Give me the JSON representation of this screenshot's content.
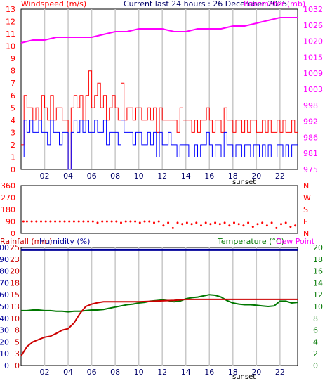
{
  "header": {
    "windspeed_label": "Windspeed (m/s)",
    "title": "Current last 24 hours : 26 December 2025",
    "barometer_label": "Barometer (mb)"
  },
  "colors": {
    "wind_gust": "#ff0000",
    "wind_avg": "#0000ff",
    "barometer": "#ff00ff",
    "rainfall": "#cc0000",
    "humidity": "#000099",
    "temperature": "#007700",
    "dewpoint": "#ff00ff",
    "direction": "#ff0000",
    "grid": "#c8c8c8"
  },
  "footer": {
    "sunset_label": "sunset"
  },
  "chart_data": [
    {
      "type": "line",
      "name": "wind-barometer",
      "title": "Current last 24 hours : 26 December 2025",
      "xlabel": "",
      "xlim": [
        0,
        23.5
      ],
      "x_ticks": [
        "02",
        "04",
        "06",
        "08",
        "10",
        "12",
        "14",
        "16",
        "18",
        "20",
        "22"
      ],
      "x_tick_values": [
        2,
        4,
        6,
        8,
        10,
        12,
        14,
        16,
        18,
        20,
        22
      ],
      "left_axis": {
        "label": "Windspeed (m/s)",
        "range": [
          0,
          13
        ],
        "ticks": [
          0,
          1,
          2,
          3,
          4,
          5,
          6,
          7,
          8,
          9,
          10,
          11,
          12,
          13
        ]
      },
      "right_axis": {
        "label": "Barometer (mb)",
        "range": [
          975,
          1032
        ],
        "ticks": [
          "975",
          "981",
          "986",
          "992",
          "998",
          "1003",
          "1009",
          "1015",
          "1020",
          "1026",
          "1032"
        ]
      },
      "series": [
        {
          "name": "Gust",
          "axis": "left",
          "x": [
            0,
            0.25,
            0.5,
            0.75,
            1,
            1.25,
            1.5,
            1.75,
            2,
            2.25,
            2.5,
            2.75,
            3,
            3.25,
            3.5,
            3.75,
            4,
            4.25,
            4.5,
            4.75,
            5,
            5.25,
            5.5,
            5.75,
            6,
            6.25,
            6.5,
            6.75,
            7,
            7.25,
            7.5,
            7.75,
            8,
            8.25,
            8.5,
            8.75,
            9,
            9.25,
            9.5,
            9.75,
            10,
            10.25,
            10.5,
            10.75,
            11,
            11.25,
            11.5,
            11.75,
            12,
            12.25,
            12.5,
            12.75,
            13,
            13.25,
            13.5,
            13.75,
            14,
            14.25,
            14.5,
            14.75,
            15,
            15.25,
            15.5,
            15.75,
            16,
            16.25,
            16.5,
            16.75,
            17,
            17.25,
            17.5,
            17.75,
            18,
            18.25,
            18.5,
            18.75,
            19,
            19.25,
            19.5,
            19.75,
            20,
            20.25,
            20.5,
            20.75,
            21,
            21.25,
            21.5,
            21.75,
            22,
            22.25,
            22.5,
            22.75,
            23,
            23.25
          ],
          "values": [
            2,
            6,
            5,
            5,
            4,
            5,
            4,
            6,
            5,
            4,
            6,
            4,
            5,
            5,
            4,
            4,
            0,
            5,
            6,
            5,
            6,
            4,
            6,
            8,
            5,
            6,
            7,
            5,
            6,
            4,
            5,
            6,
            5,
            4,
            7,
            4,
            5,
            5,
            4,
            5,
            5,
            4,
            4,
            5,
            4,
            5,
            3,
            5,
            4,
            4,
            4,
            4,
            4,
            3,
            5,
            4,
            4,
            4,
            3,
            4,
            3,
            4,
            4,
            5,
            4,
            3,
            4,
            4,
            3,
            5,
            4,
            4,
            3,
            4,
            4,
            3,
            4,
            3,
            4,
            4,
            3,
            3,
            4,
            3,
            4,
            3,
            3,
            4,
            3,
            4,
            3,
            3,
            4,
            3
          ]
        },
        {
          "name": "Average",
          "axis": "left",
          "x": [
            0,
            0.25,
            0.5,
            0.75,
            1,
            1.25,
            1.5,
            1.75,
            2,
            2.25,
            2.5,
            2.75,
            3,
            3.25,
            3.5,
            3.75,
            4,
            4.25,
            4.5,
            4.75,
            5,
            5.25,
            5.5,
            5.75,
            6,
            6.25,
            6.5,
            6.75,
            7,
            7.25,
            7.5,
            7.75,
            8,
            8.25,
            8.5,
            8.75,
            9,
            9.25,
            9.5,
            9.75,
            10,
            10.25,
            10.5,
            10.75,
            11,
            11.25,
            11.5,
            11.75,
            12,
            12.25,
            12.5,
            12.75,
            13,
            13.25,
            13.5,
            13.75,
            14,
            14.25,
            14.5,
            14.75,
            15,
            15.25,
            15.5,
            15.75,
            16,
            16.25,
            16.5,
            16.75,
            17,
            17.25,
            17.5,
            17.75,
            18,
            18.25,
            18.5,
            18.75,
            19,
            19.25,
            19.5,
            19.75,
            20,
            20.25,
            20.5,
            20.75,
            21,
            21.25,
            21.5,
            21.75,
            22,
            22.25,
            22.5,
            22.75,
            23,
            23.25
          ],
          "values": [
            1,
            4,
            3,
            4,
            3,
            3,
            4,
            3,
            3,
            2,
            4,
            3,
            3,
            2,
            3,
            3,
            0,
            3,
            4,
            3,
            4,
            3,
            4,
            3,
            3,
            4,
            3,
            3,
            4,
            2,
            3,
            3,
            3,
            2,
            4,
            3,
            3,
            3,
            2,
            3,
            3,
            2,
            2,
            3,
            2,
            3,
            1,
            3,
            2,
            2,
            3,
            2,
            2,
            1,
            2,
            2,
            2,
            1,
            1,
            2,
            1,
            2,
            2,
            3,
            2,
            1,
            2,
            2,
            1,
            3,
            2,
            2,
            1,
            2,
            2,
            1,
            2,
            2,
            1,
            2,
            2,
            1,
            2,
            1,
            2,
            1,
            1,
            2,
            2,
            1,
            2,
            1,
            2,
            2
          ]
        },
        {
          "name": "Barometer",
          "axis": "right",
          "x": [
            0,
            1,
            2,
            3,
            4,
            5,
            6,
            7,
            8,
            9,
            10,
            11,
            12,
            13,
            14,
            15,
            16,
            17,
            18,
            19,
            20,
            21,
            22,
            23,
            23.5
          ],
          "values": [
            1020,
            1021,
            1021,
            1022,
            1022,
            1022,
            1022,
            1023,
            1024,
            1024,
            1025,
            1025,
            1025,
            1024,
            1024,
            1025,
            1025,
            1025,
            1026,
            1026,
            1027,
            1028,
            1029,
            1029,
            1029
          ]
        }
      ]
    },
    {
      "type": "scatter",
      "name": "wind-direction",
      "xlim": [
        0,
        23.5
      ],
      "left_axis": {
        "range": [
          0,
          360
        ],
        "ticks": [
          "0",
          "90",
          "180",
          "270",
          "360"
        ]
      },
      "right_axis": {
        "range": [
          0,
          360
        ],
        "ticks": [
          "N",
          "E",
          "S",
          "W",
          "N"
        ]
      },
      "series": [
        {
          "name": "Direction",
          "x": [
            0.2,
            0.5,
            0.9,
            1.3,
            1.7,
            2.1,
            2.5,
            2.9,
            3.3,
            3.7,
            4.1,
            4.5,
            4.9,
            5.3,
            5.7,
            6.1,
            6.5,
            6.9,
            7.3,
            7.7,
            8.1,
            8.5,
            8.9,
            9.3,
            9.7,
            10.1,
            10.5,
            10.9,
            11.3,
            11.7,
            12.1,
            12.5,
            12.9,
            13.3,
            13.7,
            14.1,
            14.5,
            14.9,
            15.3,
            15.7,
            16.1,
            16.5,
            16.9,
            17.3,
            17.7,
            18.1,
            18.5,
            18.9,
            19.3,
            19.7,
            20.1,
            20.5,
            20.9,
            21.3,
            21.7,
            22.1,
            22.5,
            22.9,
            23.3
          ],
          "values": [
            90,
            90,
            90,
            90,
            90,
            90,
            90,
            90,
            90,
            90,
            90,
            90,
            90,
            90,
            90,
            90,
            80,
            90,
            90,
            90,
            90,
            80,
            90,
            90,
            90,
            80,
            90,
            90,
            80,
            90,
            60,
            80,
            40,
            80,
            70,
            80,
            70,
            80,
            60,
            80,
            70,
            80,
            70,
            80,
            60,
            80,
            70,
            60,
            80,
            50,
            70,
            80,
            60,
            80,
            40,
            70,
            80,
            50,
            60
          ]
        }
      ]
    },
    {
      "type": "line",
      "name": "rain-humidity-temperature",
      "xlabel": "",
      "xlim": [
        0,
        23.5
      ],
      "x_ticks": [
        "02",
        "04",
        "06",
        "08",
        "10",
        "12",
        "14",
        "16",
        "18",
        "20",
        "22"
      ],
      "x_tick_values": [
        2,
        4,
        6,
        8,
        10,
        12,
        14,
        16,
        18,
        20,
        22
      ],
      "axis_rainfall": {
        "label": "Rainfall (mm)",
        "range": [
          0,
          25
        ],
        "ticks": [
          "0",
          "3",
          "5",
          "8",
          "10",
          "13",
          "15",
          "18",
          "20",
          "23",
          "25"
        ]
      },
      "axis_humidity": {
        "label": "Humidity (%)",
        "range": [
          0,
          100
        ],
        "ticks": [
          "0",
          "10",
          "20",
          "30",
          "40",
          "50",
          "60",
          "70",
          "80",
          "90",
          "100"
        ]
      },
      "axis_temperature": {
        "label": "Temperature (°C)",
        "range": [
          0,
          20
        ],
        "ticks": [
          "0",
          "2",
          "4",
          "6",
          "8",
          "10",
          "12",
          "14",
          "16",
          "18",
          "20"
        ]
      },
      "dewpoint_label": "Dew Point",
      "series": [
        {
          "name": "Rainfall",
          "axis": "rainfall",
          "x": [
            0,
            0.5,
            1,
            1.5,
            2,
            2.5,
            3,
            3.5,
            4,
            4.5,
            5,
            5.5,
            6,
            6.5,
            7,
            8,
            9,
            10,
            11,
            12,
            13,
            14,
            15,
            16,
            17,
            18,
            19,
            20,
            21,
            22,
            23,
            23.5
          ],
          "values": [
            2,
            4,
            5,
            5.5,
            6,
            6.2,
            6.8,
            7.5,
            7.8,
            9,
            11,
            12.5,
            13,
            13.3,
            13.5,
            13.5,
            13.5,
            13.5,
            13.6,
            13.7,
            13.8,
            14,
            14,
            14,
            14,
            14,
            14,
            14,
            14,
            14,
            14,
            14
          ]
        },
        {
          "name": "Humidity",
          "axis": "humidity",
          "x": [
            0,
            23.5
          ],
          "values": [
            98,
            98
          ]
        },
        {
          "name": "Temperature",
          "axis": "temperature",
          "x": [
            0,
            0.5,
            1,
            1.5,
            2,
            2.5,
            3,
            3.5,
            4,
            4.5,
            5,
            5.5,
            6,
            6.5,
            7,
            7.5,
            8,
            8.5,
            9,
            9.5,
            10,
            10.5,
            11,
            11.5,
            12,
            12.5,
            13,
            13.5,
            14,
            14.5,
            15,
            15.5,
            16,
            16.5,
            17,
            17.5,
            18,
            18.5,
            19,
            19.5,
            20,
            20.5,
            21,
            21.5,
            22,
            22.5,
            23,
            23.5
          ],
          "values": [
            9.3,
            9.3,
            9.4,
            9.4,
            9.3,
            9.3,
            9.2,
            9.2,
            9.1,
            9.2,
            9.2,
            9.3,
            9.4,
            9.4,
            9.5,
            9.7,
            9.9,
            10.1,
            10.3,
            10.4,
            10.6,
            10.7,
            10.9,
            11.0,
            11.1,
            11.0,
            10.8,
            10.9,
            11.3,
            11.5,
            11.6,
            11.8,
            12.0,
            11.9,
            11.6,
            11.0,
            10.6,
            10.4,
            10.3,
            10.3,
            10.2,
            10.1,
            10.0,
            10.1,
            10.9,
            10.9,
            10.6,
            10.7
          ]
        }
      ]
    }
  ]
}
